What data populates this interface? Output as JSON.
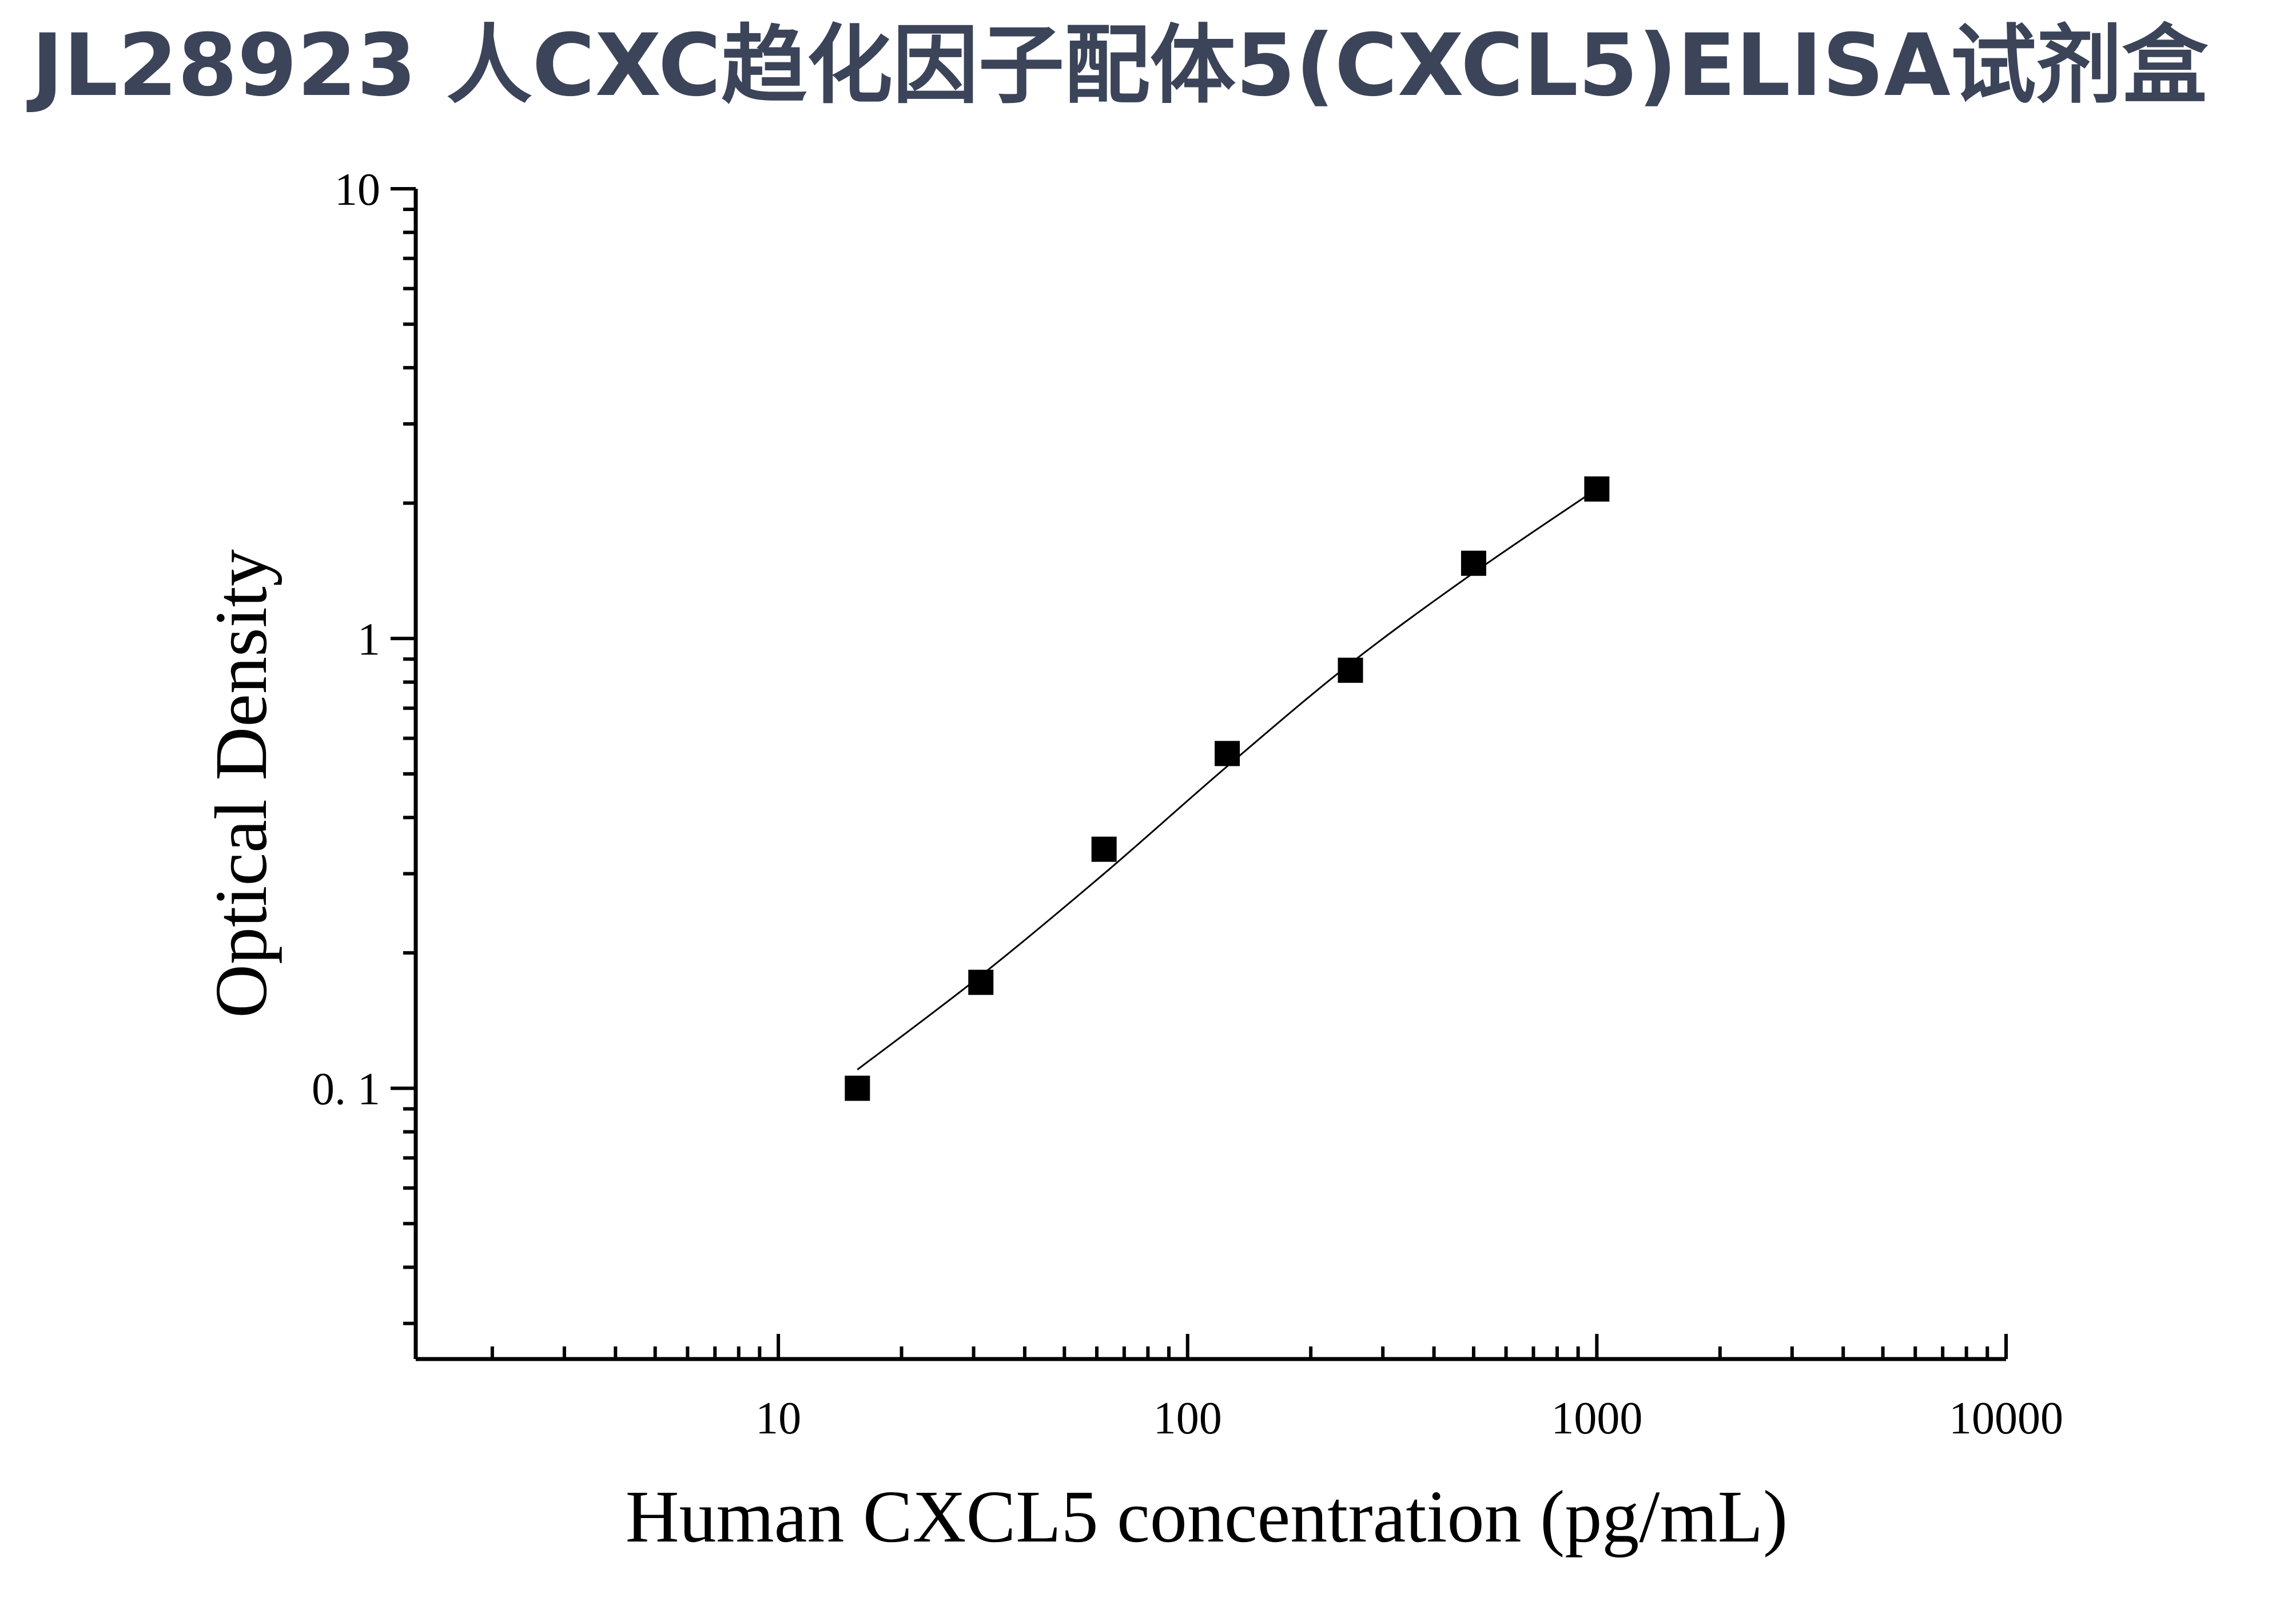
{
  "title": "JL28923 人CXC趋化因子配体5(CXCL5)ELISA试剂盒",
  "chart_data": {
    "type": "scatter",
    "title": "JL28923 人CXC趋化因子配体5(CXCL5)ELISA试剂盒",
    "xlabel": "Human CXCL5 concentration (pg/mL)",
    "ylabel": "Optical Density",
    "x_scale": "log",
    "y_scale": "log",
    "xlim": [
      1.3,
      10000
    ],
    "ylim": [
      0.025,
      10
    ],
    "x_ticks": [
      10,
      100,
      1000,
      10000
    ],
    "x_tick_labels": [
      "10",
      "100",
      "1000",
      "10000"
    ],
    "y_ticks": [
      0.1,
      1,
      10
    ],
    "y_tick_labels": [
      "0. 1",
      "1",
      "10"
    ],
    "grid": false,
    "marker": "square",
    "fit": "smooth curve",
    "series": [
      {
        "x": [
          15.6,
          31.25,
          62.5,
          125,
          250,
          500,
          1000
        ],
        "y": [
          0.1,
          0.172,
          0.34,
          0.555,
          0.85,
          1.47,
          2.15
        ]
      }
    ],
    "fit_curve": {
      "x": [
        15.6,
        31.25,
        62.5,
        125,
        250,
        500,
        1000
      ],
      "y": [
        0.11,
        0.178,
        0.3,
        0.52,
        0.88,
        1.4,
        2.15
      ]
    },
    "colors": {
      "marker": "#000000",
      "line": "#000000",
      "title": "#3b4459"
    }
  }
}
